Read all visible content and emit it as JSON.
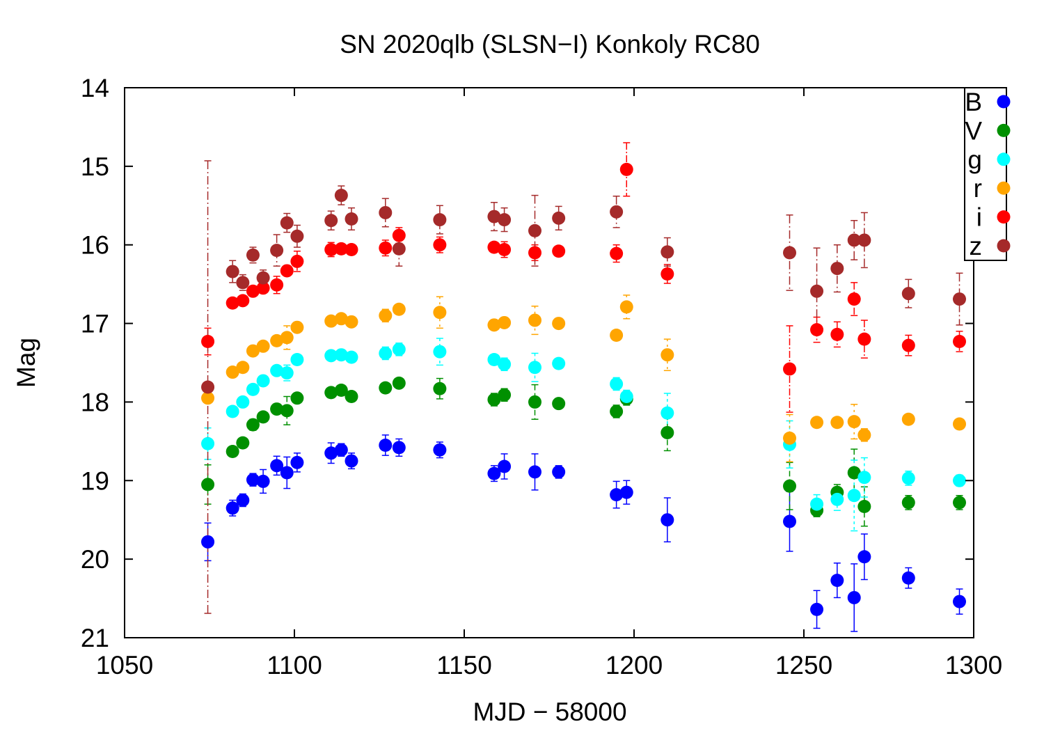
{
  "chart_data": {
    "type": "scatter",
    "title": "SN 2020qlb (SLSN−I) Konkoly RC80",
    "xlabel": "MJD − 58000",
    "ylabel": "Mag",
    "xlim": [
      1050,
      1300
    ],
    "ylim": [
      14,
      21
    ],
    "y_inverted": true,
    "x_ticks": [
      "1050",
      "1100",
      "1150",
      "1200",
      "1250",
      "1300"
    ],
    "y_ticks": [
      "14",
      "15",
      "16",
      "17",
      "18",
      "19",
      "20",
      "21"
    ],
    "grid": false,
    "legend_position": "top-right",
    "series": [
      {
        "name": "B",
        "color": "#0000ff",
        "points": [
          [
            1074.5,
            19.78,
            0.24
          ],
          [
            1081.8,
            19.35,
            0.1
          ],
          [
            1084.8,
            19.25,
            0.08
          ],
          [
            1087.8,
            18.99,
            0.08
          ],
          [
            1090.8,
            19.01,
            0.15
          ],
          [
            1094.8,
            18.81,
            0.12
          ],
          [
            1097.8,
            18.9,
            0.2
          ],
          [
            1100.8,
            18.77,
            0.12
          ],
          [
            1110.8,
            18.65,
            0.13
          ],
          [
            1113.8,
            18.61,
            0.08
          ],
          [
            1116.8,
            18.75,
            0.1
          ],
          [
            1126.8,
            18.55,
            0.13
          ],
          [
            1130.8,
            18.58,
            0.11
          ],
          [
            1142.8,
            18.61,
            0.1
          ],
          [
            1158.8,
            18.91,
            0.1
          ],
          [
            1161.8,
            18.82,
            0.16
          ],
          [
            1170.8,
            18.89,
            0.23
          ],
          [
            1177.8,
            18.89,
            0.08
          ],
          [
            1194.8,
            19.18,
            0.17
          ],
          [
            1197.8,
            19.15,
            0.15
          ],
          [
            1209.8,
            19.5,
            0.28
          ],
          [
            1245.8,
            19.52,
            0.38
          ],
          [
            1253.8,
            20.64,
            0.24
          ],
          [
            1259.8,
            20.27,
            0.22
          ],
          [
            1264.8,
            20.49,
            0.43
          ],
          [
            1267.8,
            19.97,
            0.29
          ],
          [
            1280.8,
            20.24,
            0.13
          ],
          [
            1295.8,
            20.54,
            0.16
          ]
        ]
      },
      {
        "name": "V",
        "color": "#009000",
        "points": [
          [
            1074.5,
            19.05,
            0.25
          ],
          [
            1081.8,
            18.63,
            0.06
          ],
          [
            1084.8,
            18.52,
            0.05
          ],
          [
            1087.8,
            18.29,
            0.07
          ],
          [
            1090.8,
            18.19,
            0.06
          ],
          [
            1094.8,
            18.09,
            0.06
          ],
          [
            1097.8,
            18.11,
            0.18
          ],
          [
            1100.8,
            17.95,
            0.06
          ],
          [
            1110.8,
            17.88,
            0.06
          ],
          [
            1113.8,
            17.85,
            0.06
          ],
          [
            1116.8,
            17.93,
            0.06
          ],
          [
            1126.8,
            17.82,
            0.06
          ],
          [
            1130.8,
            17.76,
            0.06
          ],
          [
            1142.8,
            17.83,
            0.13
          ],
          [
            1158.8,
            17.97,
            0.08
          ],
          [
            1161.8,
            17.91,
            0.08
          ],
          [
            1170.8,
            18.0,
            0.22
          ],
          [
            1177.8,
            18.02,
            0.06
          ],
          [
            1194.8,
            18.12,
            0.08
          ],
          [
            1197.8,
            17.96,
            0.08
          ],
          [
            1209.8,
            18.39,
            0.23
          ],
          [
            1245.8,
            19.07,
            0.3
          ],
          [
            1253.8,
            19.38,
            0.08
          ],
          [
            1259.8,
            19.15,
            0.1
          ],
          [
            1264.8,
            18.9,
            0.3
          ],
          [
            1267.8,
            19.33,
            0.25
          ],
          [
            1280.8,
            19.28,
            0.09
          ],
          [
            1295.8,
            19.28,
            0.09
          ]
        ]
      },
      {
        "name": "g",
        "color": "#00ffff",
        "points": [
          [
            1074.5,
            18.53,
            0.2
          ],
          [
            1081.8,
            18.12,
            0.06
          ],
          [
            1084.8,
            18.0,
            0.06
          ],
          [
            1087.8,
            17.84,
            0.06
          ],
          [
            1090.8,
            17.73,
            0.06
          ],
          [
            1094.8,
            17.6,
            0.06
          ],
          [
            1097.8,
            17.63,
            0.1
          ],
          [
            1100.8,
            17.46,
            0.06
          ],
          [
            1110.8,
            17.41,
            0.06
          ],
          [
            1113.8,
            17.4,
            0.06
          ],
          [
            1116.8,
            17.43,
            0.06
          ],
          [
            1126.8,
            17.38,
            0.08
          ],
          [
            1130.8,
            17.33,
            0.08
          ],
          [
            1142.8,
            17.36,
            0.17
          ],
          [
            1158.8,
            17.46,
            0.06
          ],
          [
            1161.8,
            17.52,
            0.08
          ],
          [
            1170.8,
            17.56,
            0.18
          ],
          [
            1177.8,
            17.51,
            0.06
          ],
          [
            1194.8,
            17.77,
            0.08
          ],
          [
            1197.8,
            17.93,
            0.08
          ],
          [
            1209.8,
            18.14,
            0.25
          ],
          [
            1245.8,
            18.54,
            0.3
          ],
          [
            1253.8,
            19.3,
            0.12
          ],
          [
            1259.8,
            19.24,
            0.14
          ],
          [
            1264.8,
            19.19,
            0.45
          ],
          [
            1267.8,
            18.96,
            0.25
          ],
          [
            1280.8,
            18.97,
            0.09
          ],
          [
            1295.8,
            19.0,
            0.07
          ]
        ]
      },
      {
        "name": "r",
        "color": "#ffa500",
        "points": [
          [
            1074.5,
            17.95,
            0.06
          ],
          [
            1081.8,
            17.62,
            0.06
          ],
          [
            1084.8,
            17.56,
            0.06
          ],
          [
            1087.8,
            17.35,
            0.06
          ],
          [
            1090.8,
            17.29,
            0.06
          ],
          [
            1094.8,
            17.22,
            0.06
          ],
          [
            1097.8,
            17.18,
            0.15
          ],
          [
            1100.8,
            17.05,
            0.06
          ],
          [
            1110.8,
            16.97,
            0.06
          ],
          [
            1113.8,
            16.94,
            0.06
          ],
          [
            1116.8,
            16.98,
            0.06
          ],
          [
            1126.8,
            16.9,
            0.08
          ],
          [
            1130.8,
            16.82,
            0.06
          ],
          [
            1142.8,
            16.86,
            0.2
          ],
          [
            1158.8,
            17.02,
            0.06
          ],
          [
            1161.8,
            16.99,
            0.06
          ],
          [
            1170.8,
            16.96,
            0.18
          ],
          [
            1177.8,
            17.0,
            0.06
          ],
          [
            1194.8,
            17.15,
            0.06
          ],
          [
            1197.8,
            16.79,
            0.15
          ],
          [
            1209.8,
            17.4,
            0.2
          ],
          [
            1245.8,
            18.46,
            0.3
          ],
          [
            1253.8,
            18.26,
            0.06
          ],
          [
            1259.8,
            18.26,
            0.06
          ],
          [
            1264.8,
            18.25,
            0.22
          ],
          [
            1267.8,
            18.42,
            0.08
          ],
          [
            1280.8,
            18.22,
            0.06
          ],
          [
            1295.8,
            18.28,
            0.06
          ]
        ]
      },
      {
        "name": "i",
        "color": "#ff0000",
        "points": [
          [
            1074.5,
            17.23,
            0.17
          ],
          [
            1081.8,
            16.74,
            0.06
          ],
          [
            1084.8,
            16.71,
            0.06
          ],
          [
            1087.8,
            16.59,
            0.06
          ],
          [
            1090.8,
            16.55,
            0.06
          ],
          [
            1094.8,
            16.51,
            0.11
          ],
          [
            1097.8,
            16.33,
            0.06
          ],
          [
            1100.8,
            16.21,
            0.13
          ],
          [
            1110.8,
            16.06,
            0.09
          ],
          [
            1113.8,
            16.05,
            0.06
          ],
          [
            1116.8,
            16.06,
            0.06
          ],
          [
            1126.8,
            16.04,
            0.1
          ],
          [
            1130.8,
            15.88,
            0.1
          ],
          [
            1142.8,
            16.0,
            0.1
          ],
          [
            1158.8,
            16.03,
            0.06
          ],
          [
            1161.8,
            16.06,
            0.1
          ],
          [
            1170.8,
            16.1,
            0.1
          ],
          [
            1177.8,
            16.08,
            0.06
          ],
          [
            1194.8,
            16.11,
            0.11
          ],
          [
            1197.8,
            15.04,
            0.34
          ],
          [
            1209.8,
            16.37,
            0.12
          ],
          [
            1245.8,
            17.58,
            0.55
          ],
          [
            1253.8,
            17.08,
            0.16
          ],
          [
            1259.8,
            17.14,
            0.16
          ],
          [
            1264.8,
            16.69,
            0.21
          ],
          [
            1267.8,
            17.2,
            0.24
          ],
          [
            1280.8,
            17.28,
            0.13
          ],
          [
            1295.8,
            17.23,
            0.13
          ]
        ]
      },
      {
        "name": "z",
        "color": "#a52a2a",
        "points": [
          [
            1074.5,
            17.81,
            2.88
          ],
          [
            1081.8,
            16.34,
            0.14
          ],
          [
            1084.8,
            16.48,
            0.1
          ],
          [
            1087.8,
            16.13,
            0.1
          ],
          [
            1090.8,
            16.42,
            0.1
          ],
          [
            1094.8,
            16.07,
            0.2
          ],
          [
            1097.8,
            15.72,
            0.12
          ],
          [
            1100.8,
            15.89,
            0.14
          ],
          [
            1110.8,
            15.69,
            0.12
          ],
          [
            1113.8,
            15.37,
            0.12
          ],
          [
            1116.8,
            15.67,
            0.14
          ],
          [
            1126.8,
            15.59,
            0.18
          ],
          [
            1130.8,
            16.05,
            0.22
          ],
          [
            1142.8,
            15.68,
            0.18
          ],
          [
            1158.8,
            15.64,
            0.18
          ],
          [
            1161.8,
            15.68,
            0.15
          ],
          [
            1170.8,
            15.82,
            0.45
          ],
          [
            1177.8,
            15.66,
            0.15
          ],
          [
            1194.8,
            15.58,
            0.2
          ],
          [
            1209.8,
            16.09,
            0.18
          ],
          [
            1245.8,
            16.1,
            0.48
          ],
          [
            1253.8,
            16.59,
            0.55
          ],
          [
            1259.8,
            16.3,
            0.3
          ],
          [
            1264.8,
            15.94,
            0.25
          ],
          [
            1267.8,
            15.94,
            0.35
          ],
          [
            1280.8,
            16.62,
            0.18
          ],
          [
            1295.8,
            16.69,
            0.33
          ]
        ]
      }
    ]
  }
}
